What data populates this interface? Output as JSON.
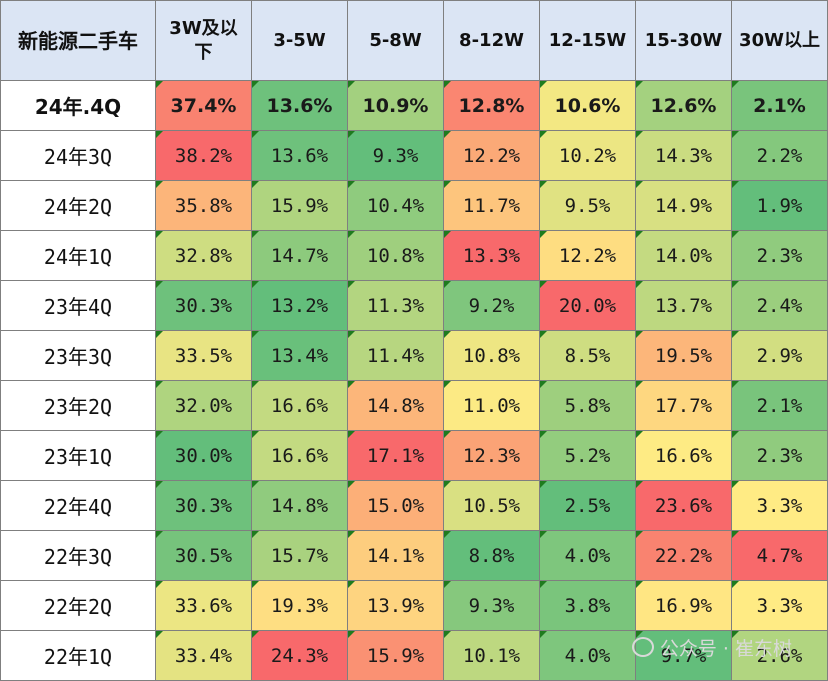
{
  "chart_data": {
    "type": "heatmap",
    "corner_label": "新能源二手车",
    "columns": [
      "3W及以\n下",
      "3-5W",
      "5-8W",
      "8-12W",
      "12-15W",
      "15-30W",
      "30W以上"
    ],
    "rows": [
      {
        "label": "24年.4Q",
        "values": [
          37.4,
          13.6,
          10.9,
          12.8,
          10.6,
          12.6,
          2.1
        ],
        "texts": [
          "37.4%",
          "13.6%",
          "10.9%",
          "12.8%",
          "10.6%",
          "12.6%",
          "2.1%"
        ],
        "bold": true
      },
      {
        "label": "24年3Q",
        "values": [
          38.2,
          13.6,
          9.3,
          12.2,
          10.2,
          14.3,
          2.2
        ],
        "texts": [
          "38.2%",
          "13.6%",
          "9.3%",
          "12.2%",
          "10.2%",
          "14.3%",
          "2.2%"
        ]
      },
      {
        "label": "24年2Q",
        "values": [
          35.8,
          15.9,
          10.4,
          11.7,
          9.5,
          14.9,
          1.9
        ],
        "texts": [
          "35.8%",
          "15.9%",
          "10.4%",
          "11.7%",
          "9.5%",
          "14.9%",
          "1.9%"
        ]
      },
      {
        "label": "24年1Q",
        "values": [
          32.8,
          14.7,
          10.8,
          13.3,
          12.2,
          14.0,
          2.3
        ],
        "texts": [
          "32.8%",
          "14.7%",
          "10.8%",
          "13.3%",
          "12.2%",
          "14.0%",
          "2.3%"
        ]
      },
      {
        "label": "23年4Q",
        "values": [
          30.3,
          13.2,
          11.3,
          9.2,
          20.0,
          13.7,
          2.4
        ],
        "texts": [
          "30.3%",
          "13.2%",
          "11.3%",
          "9.2%",
          "20.0%",
          "13.7%",
          "2.4%"
        ]
      },
      {
        "label": "23年3Q",
        "values": [
          33.5,
          13.4,
          11.4,
          10.8,
          8.5,
          19.5,
          2.9
        ],
        "texts": [
          "33.5%",
          "13.4%",
          "11.4%",
          "10.8%",
          "8.5%",
          "19.5%",
          "2.9%"
        ]
      },
      {
        "label": "23年2Q",
        "values": [
          32.0,
          16.6,
          14.8,
          11.0,
          5.8,
          17.7,
          2.1
        ],
        "texts": [
          "32.0%",
          "16.6%",
          "14.8%",
          "11.0%",
          "5.8%",
          "17.7%",
          "2.1%"
        ]
      },
      {
        "label": "23年1Q",
        "values": [
          30.0,
          16.6,
          17.1,
          12.3,
          5.2,
          16.6,
          2.3
        ],
        "texts": [
          "30.0%",
          "16.6%",
          "17.1%",
          "12.3%",
          "5.2%",
          "16.6%",
          "2.3%"
        ]
      },
      {
        "label": "22年4Q",
        "values": [
          30.3,
          14.8,
          15.0,
          10.5,
          2.5,
          23.6,
          3.3
        ],
        "texts": [
          "30.3%",
          "14.8%",
          "15.0%",
          "10.5%",
          "2.5%",
          "23.6%",
          "3.3%"
        ]
      },
      {
        "label": "22年3Q",
        "values": [
          30.5,
          15.7,
          14.1,
          8.8,
          4.0,
          22.2,
          4.7
        ],
        "texts": [
          "30.5%",
          "15.7%",
          "14.1%",
          "8.8%",
          "4.0%",
          "22.2%",
          "4.7%"
        ]
      },
      {
        "label": "22年2Q",
        "values": [
          33.6,
          19.3,
          13.9,
          9.3,
          3.8,
          16.9,
          3.3
        ],
        "texts": [
          "33.6%",
          "19.3%",
          "13.9%",
          "9.3%",
          "3.8%",
          "16.9%",
          "3.3%"
        ]
      },
      {
        "label": "22年1Q",
        "values": [
          33.4,
          24.3,
          15.9,
          10.1,
          4.0,
          9.7,
          2.6
        ],
        "texts": [
          "33.4%",
          "24.3%",
          "15.9%",
          "10.1%",
          "4.0%",
          "9.7%",
          "2.6%"
        ]
      }
    ],
    "color_scale": {
      "low": "#63be7b",
      "mid": "#ffeb84",
      "high": "#f8696b",
      "scope": "per-column"
    }
  },
  "watermark": {
    "text": "公众号 · 崔东树",
    "icon": "wechat-icon"
  }
}
